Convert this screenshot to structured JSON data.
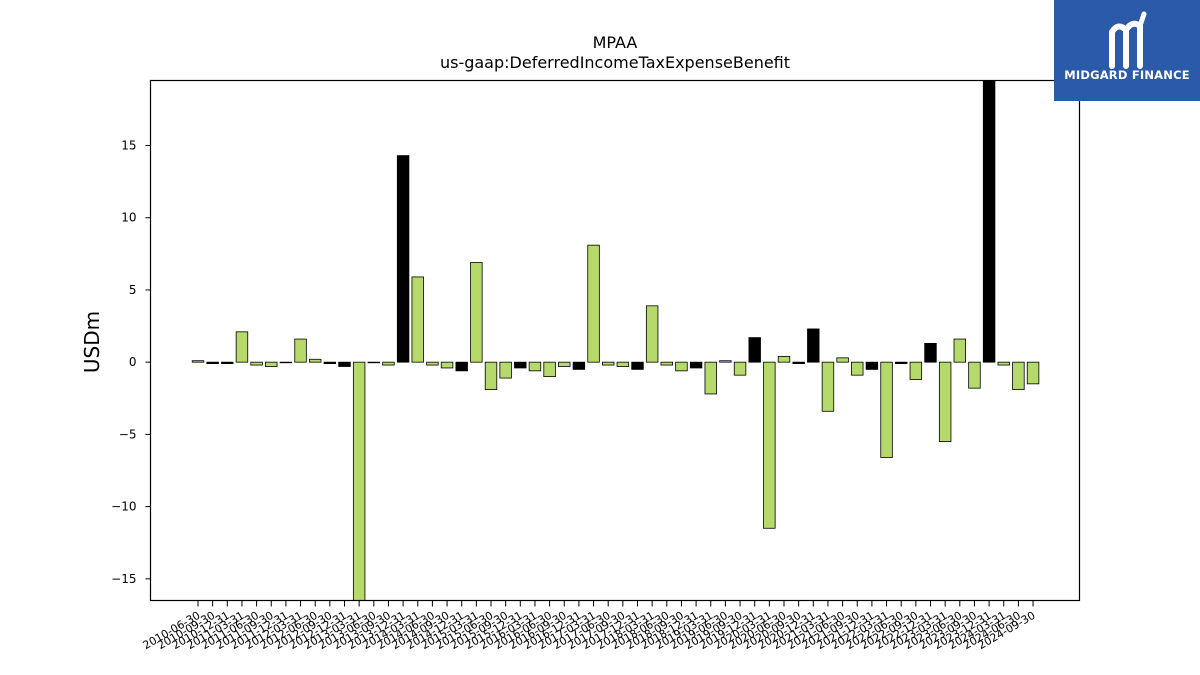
{
  "chart_data": {
    "type": "bar",
    "title": "MPAA",
    "subtitle": "us-gaap:DeferredIncomeTaxExpenseBenefit",
    "ylabel": "USDm",
    "xlabel": "",
    "ylim": [
      -16.5,
      19.5
    ],
    "yticks": [
      -15,
      -10,
      -5,
      0,
      5,
      10,
      15
    ],
    "ytick_labels": [
      "−15",
      "−10",
      "−5",
      "0",
      "5",
      "10",
      "15"
    ],
    "grid": false,
    "colors": {
      "positive": "#b5d96a",
      "negative": "#000000",
      "edge": "#000000"
    },
    "categories": [
      "2010-06-30",
      "2010-09-30",
      "2010-12-31",
      "2011-03-31",
      "2011-06-30",
      "2011-09-30",
      "2011-12-31",
      "2012-03-31",
      "2012-06-30",
      "2012-09-30",
      "2012-12-31",
      "2013-03-31",
      "2013-06-30",
      "2013-09-30",
      "2013-12-31",
      "2014-03-31",
      "2014-06-30",
      "2014-09-30",
      "2014-12-31",
      "2015-03-31",
      "2015-06-30",
      "2015-09-30",
      "2015-12-31",
      "2016-03-31",
      "2016-06-30",
      "2016-09-30",
      "2016-12-31",
      "2017-03-31",
      "2017-06-30",
      "2017-09-30",
      "2017-12-31",
      "2018-03-31",
      "2018-06-30",
      "2018-09-30",
      "2018-12-31",
      "2019-03-31",
      "2019-06-30",
      "2019-09-30",
      "2019-12-31",
      "2020-03-31",
      "2020-06-30",
      "2020-09-30",
      "2020-12-31",
      "2021-03-31",
      "2021-06-30",
      "2021-09-30",
      "2021-12-31",
      "2022-03-31",
      "2022-06-30",
      "2022-09-30",
      "2022-12-31",
      "2023-03-31",
      "2023-06-30",
      "2023-09-30",
      "2023-12-31",
      "2024-03-31",
      "2024-06-30",
      "2024-09-30"
    ],
    "tick_labels": [
      "2010-06-30",
      "2010-09-30",
      "2010-12-31",
      "2011-03-31",
      "2011-06-30",
      "2011-09-30",
      "2011-12-31",
      "2012-03-31",
      "2012-06-30",
      "2012-09-30",
      "2012-12-31",
      "2013-03-31",
      "2013-06-30",
      "2013-09-30",
      "2013-12-31",
      "2014-03-31",
      "2014-06-30",
      "2014-09-30",
      "2014-12-31",
      "2015-03-31",
      "2015-06-30",
      "2015-09-30",
      "2015-12-31",
      "2016-03-31",
      "2016-06-30",
      "2016-09-30",
      "2016-12-31",
      "2017-03-31",
      "2017-06-30",
      "2017-09-30",
      "2017-12-31",
      "2018-03-31",
      "2018-06-30",
      "2018-09-30",
      "2018-12-31",
      "2019-03-31",
      "2019-06-30",
      "2019-09-30",
      "2019-12-31",
      "2020-03-31",
      "2020-06-30",
      "2020-09-30",
      "2020-12-31",
      "2021-03-31",
      "2021-06-30",
      "2021-09-30",
      "2021-12-31",
      "2022-03-31",
      "2022-06-30",
      "2022-09-30",
      "2022-12-31",
      "2023-03-31",
      "2023-06-30",
      "2023-09-30",
      "2023-12-31",
      "2024-03-31",
      "2024-06-30",
      "2024-09-30"
    ],
    "values": [
      0.1,
      -0.1,
      -0.1,
      2.1,
      -0.2,
      -0.3,
      0.0,
      1.6,
      0.2,
      -0.1,
      -0.3,
      -16.5,
      0.0,
      -0.2,
      14.3,
      5.9,
      -0.2,
      -0.4,
      -0.6,
      6.9,
      -1.9,
      -1.1,
      -0.4,
      -0.6,
      -1.0,
      -0.3,
      -0.5,
      8.1,
      -0.2,
      -0.3,
      -0.5,
      3.9,
      -0.2,
      -0.6,
      -0.4,
      -2.2,
      0.1,
      -0.9,
      1.7,
      -11.5,
      0.4,
      -0.1,
      2.3,
      -3.4,
      0.3,
      -0.9,
      -0.5,
      -6.6,
      -0.1,
      -1.2,
      1.3,
      -5.5,
      1.6,
      -1.8,
      19.5,
      -0.2,
      -1.9,
      -1.5
    ],
    "bar_colors": [
      "#b5d96a",
      "#000000",
      "#000000",
      "#b5d96a",
      "#b5d96a",
      "#b5d96a",
      "#b5d96a",
      "#b5d96a",
      "#b5d96a",
      "#000000",
      "#000000",
      "#b5d96a",
      "#b5d96a",
      "#b5d96a",
      "#000000",
      "#b5d96a",
      "#b5d96a",
      "#b5d96a",
      "#000000",
      "#b5d96a",
      "#b5d96a",
      "#b5d96a",
      "#000000",
      "#b5d96a",
      "#b5d96a",
      "#b5d96a",
      "#000000",
      "#b5d96a",
      "#b5d96a",
      "#b5d96a",
      "#000000",
      "#b5d96a",
      "#b5d96a",
      "#b5d96a",
      "#000000",
      "#b5d96a",
      "#b5d96a",
      "#b5d96a",
      "#000000",
      "#b5d96a",
      "#b5d96a",
      "#000000",
      "#000000",
      "#b5d96a",
      "#b5d96a",
      "#b5d96a",
      "#000000",
      "#b5d96a",
      "#000000",
      "#b5d96a",
      "#000000",
      "#b5d96a",
      "#b5d96a",
      "#b5d96a",
      "#000000",
      "#b5d96a",
      "#b5d96a",
      "#b5d96a"
    ]
  },
  "logo": {
    "text": "MIDGARD FINANCE",
    "background": "#2a5aa8",
    "icon": "midgard-logo-icon"
  }
}
